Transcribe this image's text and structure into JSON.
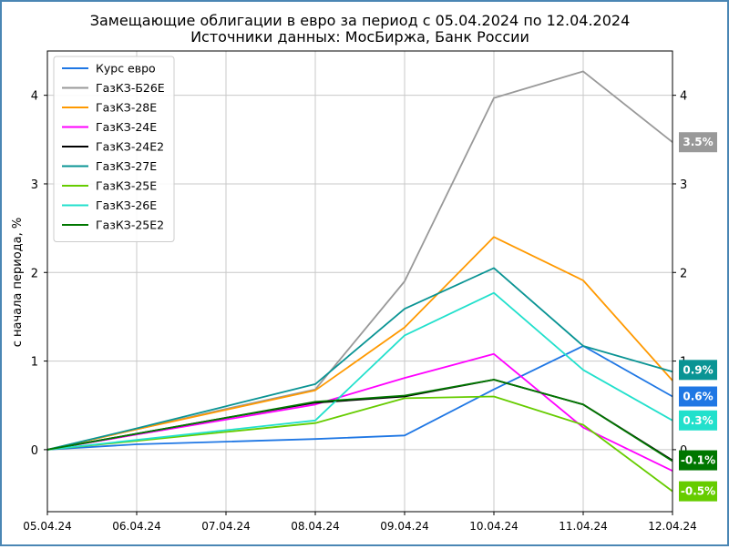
{
  "chart_data": {
    "type": "line",
    "title": "Замещающие облигации в евро за период с 05.04.2024 по 12.04.2024",
    "subtitle": "Источники данных: МосБиржа, Банк России",
    "ylabel": "с начала периода, %",
    "xlabel": "",
    "categories": [
      "05.04.24",
      "06.04.24",
      "07.04.24",
      "08.04.24",
      "09.04.24",
      "10.04.24",
      "11.04.24",
      "12.04.24"
    ],
    "ylim": [
      -0.7,
      4.5
    ],
    "yticks": [
      0,
      1,
      2,
      3,
      4
    ],
    "grid": true,
    "legend_position": "top-left",
    "series": [
      {
        "name": "Курс евро",
        "color": "#1f77e4",
        "values": [
          0,
          0.06,
          0.09,
          0.12,
          0.16,
          0.68,
          1.17,
          0.6
        ]
      },
      {
        "name": "ГазКЗ-Б26Е",
        "color": "#999999",
        "values": [
          0,
          0.23,
          0.46,
          0.68,
          1.9,
          3.97,
          4.27,
          3.47
        ]
      },
      {
        "name": "ГазКЗ-28Е",
        "color": "#ff9900",
        "values": [
          0,
          0.23,
          0.45,
          0.67,
          1.38,
          2.4,
          1.91,
          0.78
        ]
      },
      {
        "name": "ГазКЗ-24Е",
        "color": "#ff00ff",
        "values": [
          0,
          0.17,
          0.34,
          0.51,
          0.81,
          1.08,
          0.25,
          -0.24
        ]
      },
      {
        "name": "ГазКЗ-24Е2",
        "color": "#000000",
        "values": [
          0,
          0.18,
          0.36,
          0.53,
          0.6,
          0.79,
          0.51,
          -0.12
        ]
      },
      {
        "name": "ГазКЗ-27Е",
        "color": "#0a9494",
        "values": [
          0,
          0.24,
          0.49,
          0.74,
          1.59,
          2.05,
          1.17,
          0.88
        ]
      },
      {
        "name": "ГазКЗ-25Е",
        "color": "#66cc00",
        "values": [
          0,
          0.1,
          0.2,
          0.3,
          0.58,
          0.6,
          0.28,
          -0.47
        ]
      },
      {
        "name": "ГазКЗ-26Е",
        "color": "#22e0cc",
        "values": [
          0,
          0.11,
          0.22,
          0.33,
          1.29,
          1.77,
          0.9,
          0.33
        ]
      },
      {
        "name": "ГазКЗ-25Е2",
        "color": "#007700",
        "values": [
          0,
          0.18,
          0.36,
          0.54,
          0.61,
          0.79,
          0.51,
          -0.13
        ]
      }
    ],
    "end_labels": [
      {
        "text": "3.5%",
        "value": 3.47,
        "color": "#999999"
      },
      {
        "text": "0.9%",
        "value": 0.9,
        "color": "#0a9494"
      },
      {
        "text": "0.6%",
        "value": 0.6,
        "color": "#1f77e4"
      },
      {
        "text": "0.3%",
        "value": 0.33,
        "color": "#22e0cc"
      },
      {
        "text": "-0.1%",
        "value": -0.12,
        "color": "#007700"
      },
      {
        "text": "-0.5%",
        "value": -0.47,
        "color": "#66cc00"
      }
    ]
  }
}
